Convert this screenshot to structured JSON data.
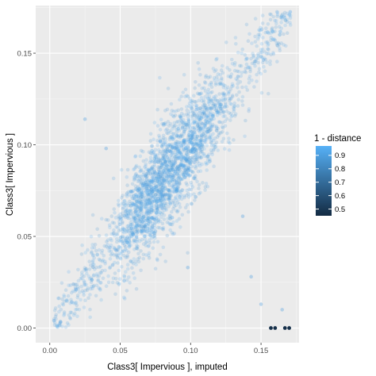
{
  "chart_data": {
    "type": "scatter",
    "xlabel": "Class3[ Impervious ], imputed",
    "ylabel": "Class3[ Impervious ]",
    "xlim": [
      -0.01,
      0.177
    ],
    "ylim": [
      -0.008,
      0.176
    ],
    "x_ticks": [
      0.0,
      0.05,
      0.1,
      0.15
    ],
    "x_tick_labels": [
      "0.00",
      "0.05",
      "0.10",
      "0.15"
    ],
    "y_ticks": [
      0.0,
      0.05,
      0.1,
      0.15
    ],
    "y_tick_labels": [
      "0.00",
      "0.05",
      "0.10",
      "0.15"
    ],
    "grid": true,
    "panel_background": "#ebebeb",
    "color_scale": {
      "title": "1 - distance",
      "min": 0.45,
      "max": 0.97,
      "low_color": "#132b43",
      "high_color": "#56b1f7",
      "breaks": [
        0.5,
        0.6,
        0.7,
        0.8,
        0.9
      ],
      "break_labels": [
        "0.5",
        "0.6",
        "0.7",
        "0.8",
        "0.9"
      ]
    },
    "legend_position": "right",
    "point_alpha": 0.2,
    "points_description_ranges": {
      "main_cloud_x": [
        0.0,
        0.172
      ],
      "main_cloud_y": [
        0.0,
        0.172
      ]
    },
    "dark_points": [
      {
        "x": 0.157,
        "y": 0.0,
        "value": 0.47
      },
      {
        "x": 0.16,
        "y": 0.0,
        "value": 0.47
      },
      {
        "x": 0.167,
        "y": 0.0,
        "value": 0.47
      },
      {
        "x": 0.17,
        "y": 0.0,
        "value": 0.47
      }
    ],
    "outlier_points": [
      {
        "x": 0.15,
        "y": 0.013,
        "value": 0.9
      },
      {
        "x": 0.165,
        "y": 0.01,
        "value": 0.9
      },
      {
        "x": 0.143,
        "y": 0.028,
        "value": 0.9
      },
      {
        "x": 0.025,
        "y": 0.114,
        "value": 0.9
      },
      {
        "x": 0.04,
        "y": 0.098,
        "value": 0.9
      },
      {
        "x": 0.098,
        "y": 0.033,
        "value": 0.9
      },
      {
        "x": 0.137,
        "y": 0.061,
        "value": 0.9
      },
      {
        "x": 0.003,
        "y": 0.004,
        "value": 0.9
      }
    ]
  }
}
